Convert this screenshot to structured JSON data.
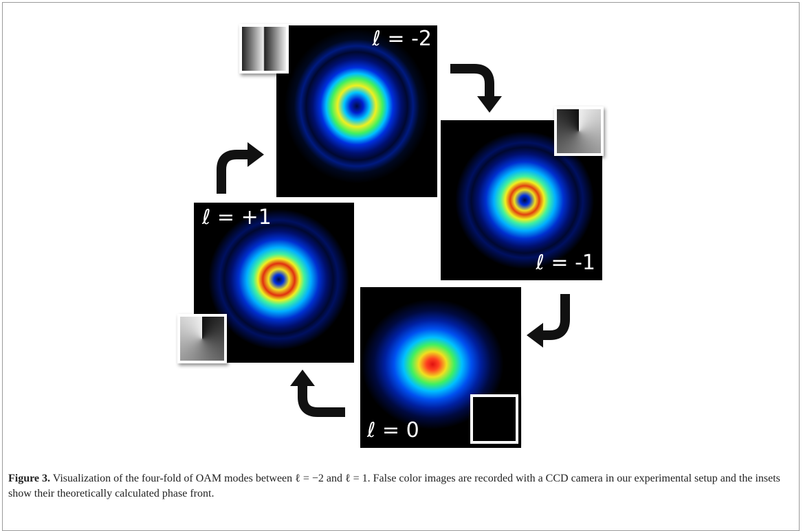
{
  "modes": [
    {
      "label": "ℓ = -2"
    },
    {
      "label": "ℓ = -1"
    },
    {
      "label": "ℓ = 0"
    },
    {
      "label": "ℓ = +1"
    }
  ],
  "caption": {
    "label": "Figure 3.",
    "text": "Visualization of the four-fold of OAM modes between ℓ = −2 and ℓ = 1. False color images are recorded with a CCD camera in our experimental setup and the insets show their theoretically calculated phase front."
  }
}
